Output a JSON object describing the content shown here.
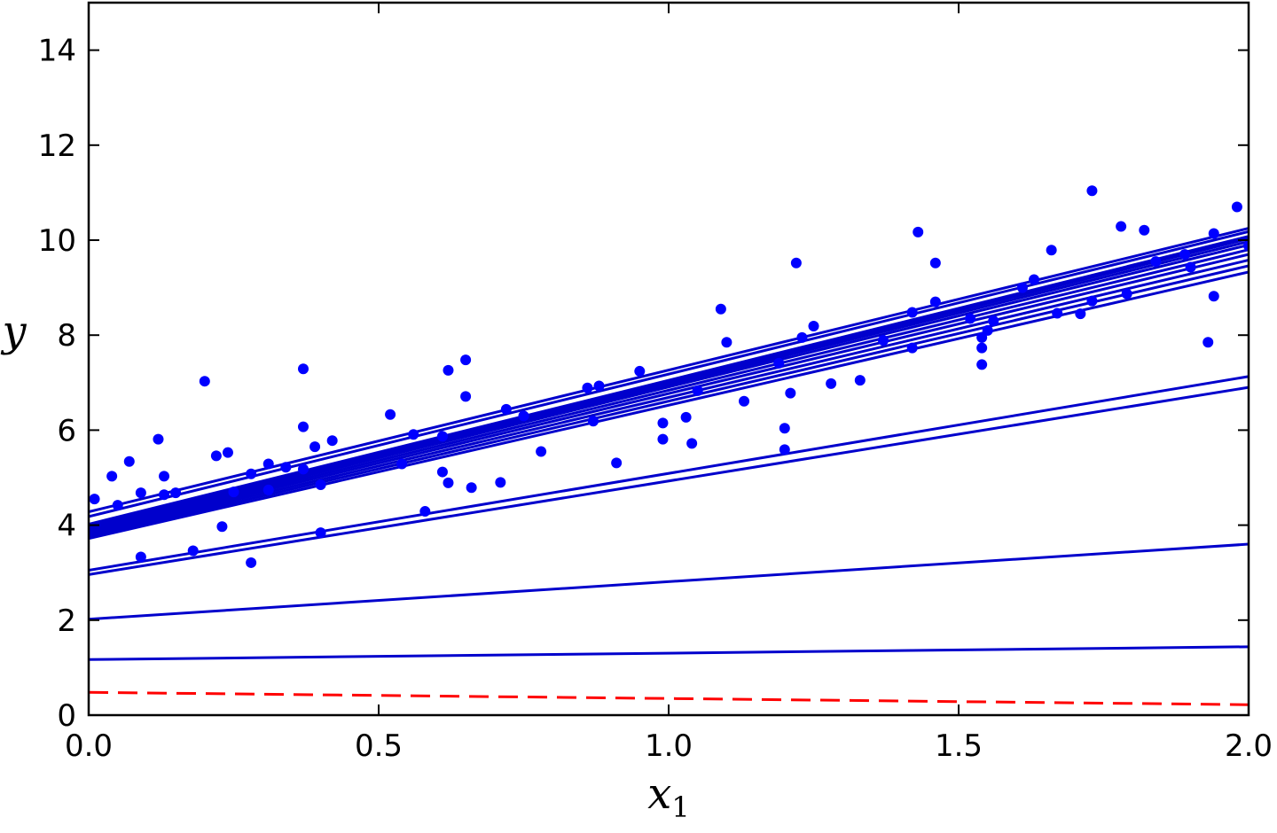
{
  "chart_data": {
    "type": "scatter",
    "xlabel": "x",
    "xlabel_sub": "1",
    "ylabel": "y",
    "xlim": [
      0,
      2
    ],
    "ylim": [
      0,
      15
    ],
    "xticks": [
      0,
      0.5,
      1,
      1.5,
      2
    ],
    "xtick_labels": [
      "0.0",
      "0.5",
      "1.0",
      "1.5",
      "2.0"
    ],
    "yticks": [
      0,
      2,
      4,
      6,
      8,
      10,
      12,
      14
    ],
    "ytick_labels": [
      "0",
      "2",
      "4",
      "6",
      "8",
      "10",
      "12",
      "14"
    ],
    "grid": false,
    "colors": {
      "points": "#0000ff",
      "lines": "#0000cc",
      "initial_line": "#ff0000"
    },
    "points": [
      [
        0.01,
        4.55
      ],
      [
        0.04,
        5.03
      ],
      [
        0.05,
        4.42
      ],
      [
        0.07,
        5.34
      ],
      [
        0.09,
        4.68
      ],
      [
        0.09,
        3.33
      ],
      [
        0.12,
        5.81
      ],
      [
        0.13,
        5.03
      ],
      [
        0.13,
        4.64
      ],
      [
        0.15,
        4.68
      ],
      [
        0.18,
        3.46
      ],
      [
        0.2,
        7.03
      ],
      [
        0.22,
        5.46
      ],
      [
        0.23,
        3.97
      ],
      [
        0.24,
        5.53
      ],
      [
        0.25,
        4.7
      ],
      [
        0.28,
        5.08
      ],
      [
        0.28,
        3.21
      ],
      [
        0.31,
        5.29
      ],
      [
        0.31,
        4.74
      ],
      [
        0.34,
        5.22
      ],
      [
        0.37,
        7.29
      ],
      [
        0.37,
        6.07
      ],
      [
        0.37,
        5.18
      ],
      [
        0.39,
        5.65
      ],
      [
        0.4,
        4.85
      ],
      [
        0.4,
        3.84
      ],
      [
        0.42,
        5.78
      ],
      [
        0.52,
        6.33
      ],
      [
        0.54,
        5.29
      ],
      [
        0.56,
        5.91
      ],
      [
        0.58,
        4.29
      ],
      [
        0.61,
        5.12
      ],
      [
        0.61,
        5.87
      ],
      [
        0.62,
        4.89
      ],
      [
        0.62,
        7.26
      ],
      [
        0.65,
        7.48
      ],
      [
        0.65,
        6.71
      ],
      [
        0.66,
        4.79
      ],
      [
        0.71,
        4.9
      ],
      [
        0.72,
        6.44
      ],
      [
        0.75,
        6.3
      ],
      [
        0.78,
        5.55
      ],
      [
        0.86,
        6.89
      ],
      [
        0.87,
        6.19
      ],
      [
        0.88,
        6.93
      ],
      [
        0.91,
        5.31
      ],
      [
        0.95,
        7.24
      ],
      [
        0.99,
        6.15
      ],
      [
        0.99,
        5.81
      ],
      [
        1.03,
        6.27
      ],
      [
        1.04,
        5.72
      ],
      [
        1.05,
        6.83
      ],
      [
        1.09,
        8.55
      ],
      [
        1.1,
        7.85
      ],
      [
        1.13,
        6.61
      ],
      [
        1.19,
        7.41
      ],
      [
        1.2,
        6.04
      ],
      [
        1.2,
        5.59
      ],
      [
        1.21,
        6.78
      ],
      [
        1.22,
        9.52
      ],
      [
        1.23,
        7.95
      ],
      [
        1.25,
        8.19
      ],
      [
        1.28,
        6.98
      ],
      [
        1.33,
        7.05
      ],
      [
        1.37,
        7.89
      ],
      [
        1.42,
        8.48
      ],
      [
        1.42,
        7.73
      ],
      [
        1.43,
        10.17
      ],
      [
        1.46,
        9.52
      ],
      [
        1.46,
        8.7
      ],
      [
        1.52,
        8.35
      ],
      [
        1.54,
        7.95
      ],
      [
        1.54,
        7.73
      ],
      [
        1.54,
        7.38
      ],
      [
        1.55,
        8.1
      ],
      [
        1.56,
        8.3
      ],
      [
        1.61,
        9.0
      ],
      [
        1.63,
        9.17
      ],
      [
        1.66,
        9.79
      ],
      [
        1.67,
        8.46
      ],
      [
        1.71,
        8.45
      ],
      [
        1.73,
        11.04
      ],
      [
        1.73,
        8.72
      ],
      [
        1.78,
        10.29
      ],
      [
        1.79,
        8.87
      ],
      [
        1.82,
        10.21
      ],
      [
        1.84,
        9.55
      ],
      [
        1.89,
        9.7
      ],
      [
        1.9,
        9.43
      ],
      [
        1.93,
        7.85
      ],
      [
        1.94,
        10.14
      ],
      [
        1.94,
        8.82
      ],
      [
        1.98,
        10.7
      ],
      [
        2.0,
        9.88
      ]
    ],
    "lines": [
      {
        "y0": 0.48,
        "y1": 0.22,
        "style": "dashed"
      },
      {
        "y0": 1.17,
        "y1": 1.44,
        "style": "solid"
      },
      {
        "y0": 2.02,
        "y1": 3.6,
        "style": "solid"
      },
      {
        "y0": 2.96,
        "y1": 6.9,
        "style": "solid"
      },
      {
        "y0": 3.05,
        "y1": 7.13,
        "style": "solid"
      },
      {
        "y0": 3.72,
        "y1": 9.33,
        "style": "solid"
      },
      {
        "y0": 3.76,
        "y1": 9.46,
        "style": "solid"
      },
      {
        "y0": 3.8,
        "y1": 9.58,
        "style": "solid"
      },
      {
        "y0": 3.84,
        "y1": 9.7,
        "style": "solid"
      },
      {
        "y0": 3.88,
        "y1": 9.8,
        "style": "solid"
      },
      {
        "y0": 3.92,
        "y1": 9.9,
        "style": "solid"
      },
      {
        "y0": 3.95,
        "y1": 9.97,
        "style": "solid"
      },
      {
        "y0": 3.98,
        "y1": 10.03,
        "style": "solid"
      },
      {
        "y0": 4.02,
        "y1": 10.08,
        "style": "solid"
      },
      {
        "y0": 4.18,
        "y1": 10.18,
        "style": "solid"
      },
      {
        "y0": 4.28,
        "y1": 10.25,
        "style": "solid"
      }
    ]
  }
}
